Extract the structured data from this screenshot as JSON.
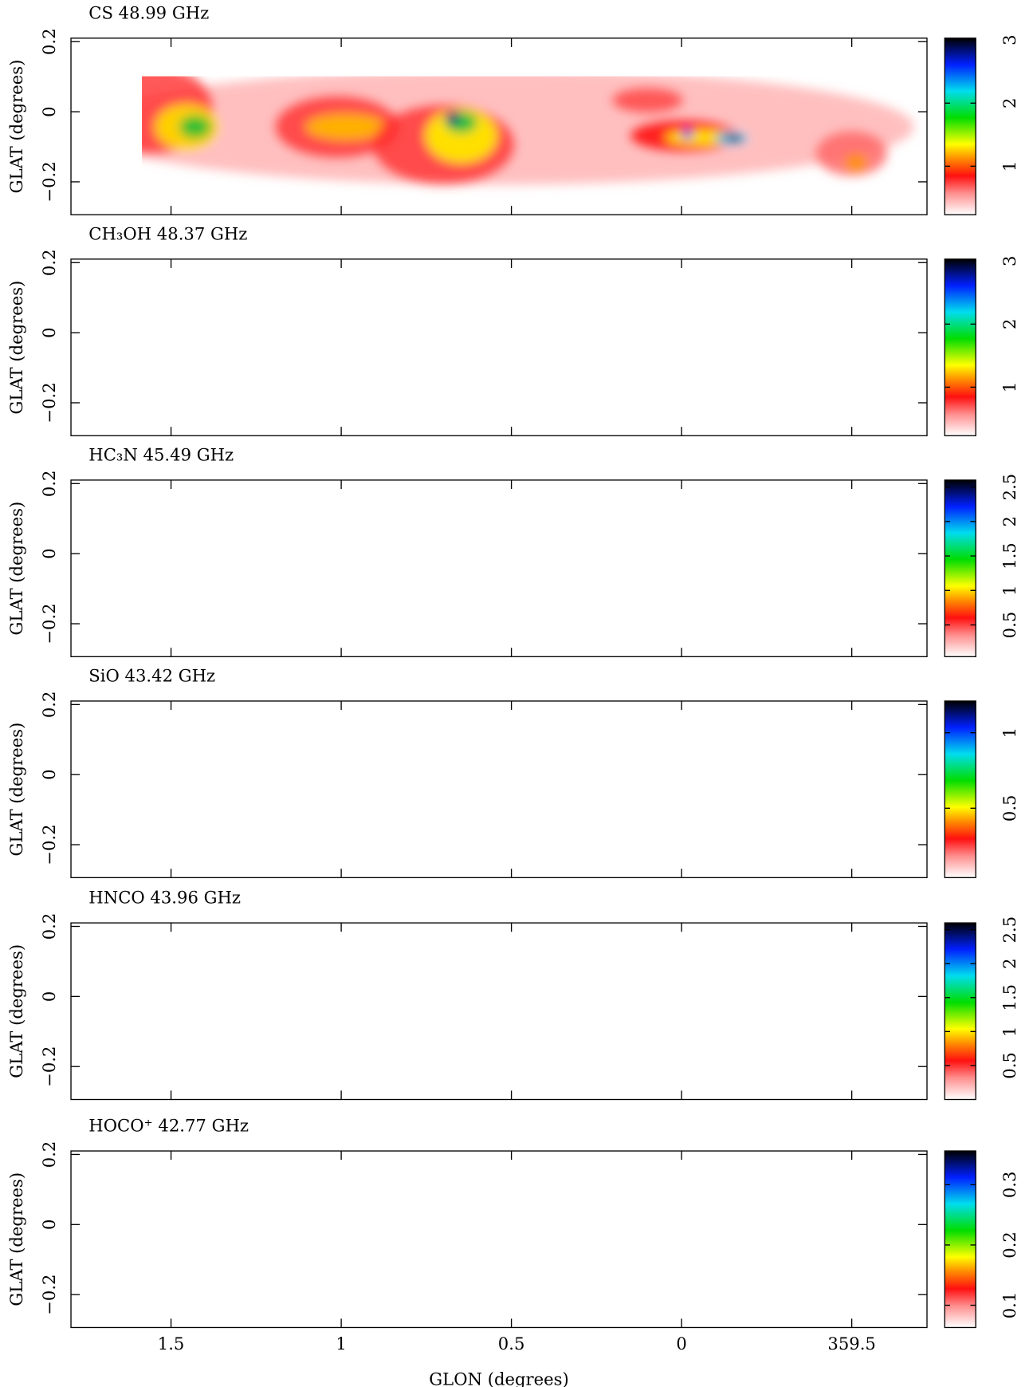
{
  "chart_data": [
    {
      "type": "heatmap",
      "title": "CS 48.99 GHz",
      "ylabel": "GLAT (degrees)",
      "xlim": [
        1.794,
        -0.721
      ],
      "xticks": [
        1.5,
        1,
        0.5,
        0,
        {
          "value": -0.5,
          "label": "359.5"
        }
      ],
      "ylim": [
        -0.294,
        0.21
      ],
      "yticks": [
        {
          "value": -0.2,
          "label": "−0.2"
        },
        0,
        0.2
      ],
      "clim": [
        0.23,
        3.03
      ],
      "cticks": [
        1,
        2,
        3
      ]
    },
    {
      "type": "heatmap",
      "title": "CH₃OH 48.37 GHz",
      "ylabel": "GLAT (degrees)",
      "xlim": [
        1.794,
        -0.721
      ],
      "xticks": [
        1.5,
        1,
        0.5,
        0,
        {
          "value": -0.5,
          "label": "359.5"
        }
      ],
      "ylim": [
        -0.294,
        0.21
      ],
      "yticks": [
        {
          "value": -0.2,
          "label": "−0.2"
        },
        0,
        0.2
      ],
      "clim": [
        0.23,
        3.03
      ],
      "cticks": [
        1,
        2,
        3
      ]
    },
    {
      "type": "heatmap",
      "title": "HC₃N 45.49 GHz",
      "ylabel": "GLAT (degrees)",
      "xlim": [
        1.794,
        -0.721
      ],
      "xticks": [
        1.5,
        1,
        0.5,
        0,
        {
          "value": -0.5,
          "label": "359.5"
        }
      ],
      "ylim": [
        -0.294,
        0.21
      ],
      "yticks": [
        {
          "value": -0.2,
          "label": "−0.2"
        },
        0,
        0.2
      ],
      "clim": [
        0.04,
        2.6
      ],
      "cticks": [
        0.5,
        1,
        1.5,
        2,
        2.5
      ]
    },
    {
      "type": "heatmap",
      "title": "SiO 43.42 GHz",
      "ylabel": "GLAT (degrees)",
      "xlim": [
        1.794,
        -0.721
      ],
      "xticks": [
        1.5,
        1,
        0.5,
        0,
        {
          "value": -0.5,
          "label": "359.5"
        }
      ],
      "ylim": [
        -0.294,
        0.21
      ],
      "yticks": [
        {
          "value": -0.2,
          "label": "−0.2"
        },
        0,
        0.2
      ],
      "clim": [
        0.04,
        1.21
      ],
      "cticks": [
        0.5,
        1
      ]
    },
    {
      "type": "heatmap",
      "title": "HNCO 43.96 GHz",
      "ylabel": "GLAT (degrees)",
      "xlim": [
        1.794,
        -0.721
      ],
      "xticks": [
        1.5,
        1,
        0.5,
        0,
        {
          "value": -0.5,
          "label": "359.5"
        }
      ],
      "ylim": [
        -0.294,
        0.21
      ],
      "yticks": [
        {
          "value": -0.2,
          "label": "−0.2"
        },
        0,
        0.2
      ],
      "clim": [
        0.0,
        2.6
      ],
      "cticks": [
        0.5,
        1,
        1.5,
        2,
        2.5
      ]
    },
    {
      "type": "heatmap",
      "title": "HOCO⁺ 42.77 GHz",
      "ylabel": "GLAT (degrees)",
      "xlabel": "GLON (degrees)",
      "xlim": [
        1.794,
        -0.721
      ],
      "xticks": [
        1.5,
        1,
        0.5,
        0,
        {
          "value": -0.5,
          "label": "359.5"
        }
      ],
      "ylim": [
        -0.294,
        0.21
      ],
      "yticks": [
        {
          "value": -0.2,
          "label": "−0.2"
        },
        0,
        0.2
      ],
      "clim": [
        0.063,
        0.356
      ],
      "cticks": [
        0.1,
        0.2,
        0.3
      ]
    }
  ]
}
